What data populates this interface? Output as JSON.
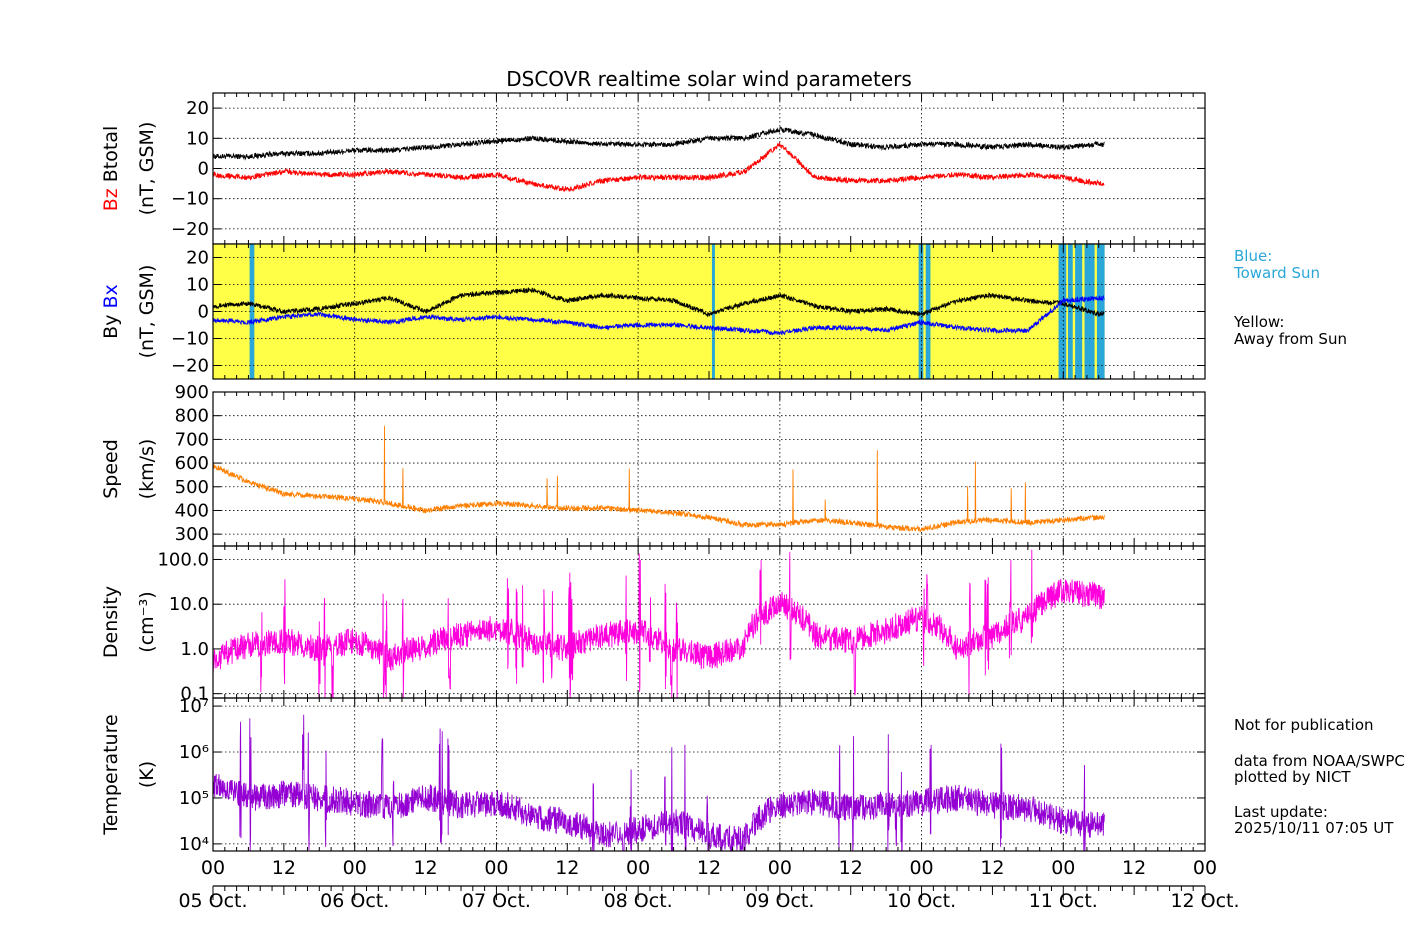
{
  "chart_data": {
    "type": "line",
    "title": "DSCOVR realtime solar wind parameters",
    "x_axis": {
      "range_hours": [
        0,
        168
      ],
      "hour_ticks": [
        "00",
        "12",
        "00",
        "12",
        "00",
        "12",
        "00",
        "12",
        "00",
        "12",
        "00",
        "12",
        "00",
        "12",
        "00"
      ],
      "date_ticks": [
        "05 Oct.",
        "06 Oct.",
        "07 Oct.",
        "08 Oct.",
        "09 Oct.",
        "10 Oct.",
        "11 Oct.",
        "12 Oct."
      ],
      "data_end_hour": 151
    },
    "panels": [
      {
        "id": "btotal_bz",
        "ylabel_parts": [
          "Bz",
          "Btotal"
        ],
        "ylabel_colors": [
          "#ff0000",
          "#000000"
        ],
        "ylabel_unit": "(nT, GSM)",
        "scale": "linear",
        "ylim": [
          -25,
          25
        ],
        "yticks": [
          -20,
          -10,
          0,
          10,
          20
        ],
        "ytick_labels": [
          "−20",
          "−10",
          "0",
          "10",
          "20"
        ],
        "series": [
          {
            "name": "Btotal",
            "color": "#000000",
            "x": [
              0,
              6,
              12,
              18,
              24,
              30,
              36,
              42,
              48,
              54,
              60,
              66,
              72,
              78,
              84,
              90,
              96,
              102,
              108,
              114,
              120,
              126,
              132,
              138,
              144,
              150
            ],
            "values": [
              4,
              4,
              5,
              5,
              6,
              6,
              7,
              8,
              9,
              10,
              9,
              8,
              8,
              8,
              10,
              10,
              13,
              11,
              8,
              7,
              8,
              8,
              7,
              8,
              7,
              8
            ]
          },
          {
            "name": "Bz",
            "color": "#ff0000",
            "x": [
              0,
              6,
              12,
              18,
              24,
              30,
              36,
              42,
              48,
              54,
              60,
              66,
              72,
              78,
              84,
              90,
              96,
              102,
              108,
              114,
              120,
              126,
              132,
              138,
              144,
              150
            ],
            "values": [
              -2,
              -3,
              -1,
              -2,
              -2,
              -1,
              -2,
              -3,
              -2,
              -5,
              -7,
              -4,
              -3,
              -3,
              -3,
              -1,
              8,
              -3,
              -4,
              -4,
              -3,
              -2,
              -3,
              -2,
              -3,
              -5
            ]
          }
        ]
      },
      {
        "id": "by_bx",
        "ylabel_parts": [
          "By",
          "Bx"
        ],
        "ylabel_colors": [
          "#000000",
          "#0000ff"
        ],
        "ylabel_unit": "(nT, GSM)",
        "scale": "linear",
        "ylim": [
          -25,
          25
        ],
        "yticks": [
          -20,
          -10,
          0,
          10,
          20
        ],
        "ytick_labels": [
          "−20",
          "−10",
          "0",
          "10",
          "20"
        ],
        "background": {
          "away_color": "#ffff47",
          "toward_color": "#2aa7d8",
          "toward_intervals_hours": [
            [
              6.2,
              7.0
            ],
            [
              84.5,
              85.0
            ],
            [
              119.5,
              120.3
            ],
            [
              120.7,
              121.5
            ],
            [
              143.2,
              144.5
            ],
            [
              144.8,
              145.6
            ],
            [
              146.0,
              147.2
            ],
            [
              147.6,
              149.3
            ],
            [
              149.7,
              151.0
            ]
          ]
        },
        "series": [
          {
            "name": "By",
            "color": "#000000",
            "x": [
              0,
              6,
              12,
              18,
              24,
              30,
              36,
              42,
              48,
              54,
              60,
              66,
              72,
              78,
              84,
              90,
              96,
              102,
              108,
              114,
              120,
              126,
              132,
              138,
              144,
              150
            ],
            "values": [
              2,
              3,
              0,
              1,
              3,
              5,
              0,
              6,
              7,
              8,
              4,
              6,
              5,
              4,
              -1,
              3,
              6,
              2,
              0,
              1,
              -1,
              4,
              6,
              4,
              3,
              -1
            ]
          },
          {
            "name": "Bx",
            "color": "#0000ff",
            "x": [
              0,
              6,
              12,
              18,
              24,
              30,
              36,
              42,
              48,
              54,
              60,
              66,
              72,
              78,
              84,
              90,
              96,
              102,
              108,
              114,
              120,
              126,
              132,
              138,
              144,
              150
            ],
            "values": [
              -3,
              -4,
              -2,
              -1,
              -3,
              -4,
              -2,
              -3,
              -2,
              -3,
              -4,
              -6,
              -5,
              -5,
              -6,
              -7,
              -8,
              -6,
              -6,
              -7,
              -4,
              -6,
              -7,
              -7,
              4,
              5
            ]
          }
        ],
        "legend_notes": [
          {
            "label": "Blue:",
            "detail": "Toward Sun",
            "color": "#2aa7d8"
          },
          {
            "label": "Yellow:",
            "detail": "Away from Sun",
            "color": "#000000"
          }
        ]
      },
      {
        "id": "speed",
        "ylabel_parts": [
          "Speed"
        ],
        "ylabel_colors": [
          "#000000"
        ],
        "ylabel_unit": "(km/s)",
        "scale": "linear",
        "ylim": [
          250,
          900
        ],
        "yticks": [
          300,
          400,
          500,
          600,
          700,
          800,
          900
        ],
        "ytick_labels": [
          "300",
          "400",
          "500",
          "600",
          "700",
          "800",
          "900"
        ],
        "series": [
          {
            "name": "Speed",
            "color": "#ff8000",
            "x": [
              0,
              6,
              12,
              18,
              24,
              30,
              36,
              42,
              48,
              54,
              60,
              66,
              72,
              78,
              84,
              90,
              96,
              102,
              108,
              114,
              120,
              126,
              132,
              138,
              144,
              150
            ],
            "values": [
              590,
              520,
              470,
              460,
              450,
              430,
              400,
              420,
              430,
              420,
              410,
              410,
              400,
              390,
              370,
              340,
              340,
              360,
              350,
              330,
              320,
              350,
              360,
              350,
              360,
              370
            ]
          }
        ]
      },
      {
        "id": "density",
        "ylabel_parts": [
          "Density"
        ],
        "ylabel_colors": [
          "#000000"
        ],
        "ylabel_unit": "(cm⁻³)",
        "scale": "log",
        "ylim": [
          0.08,
          200
        ],
        "yticks": [
          0.1,
          1.0,
          10.0,
          100.0
        ],
        "ytick_labels": [
          "0.1",
          "1.0",
          "10.0",
          "100.0"
        ],
        "series": [
          {
            "name": "Density",
            "color": "#ff00dd",
            "x": [
              0,
              6,
              12,
              18,
              24,
              30,
              36,
              42,
              48,
              54,
              60,
              66,
              72,
              78,
              84,
              90,
              96,
              102,
              108,
              114,
              120,
              126,
              132,
              138,
              144,
              150
            ],
            "values": [
              0.5,
              1.2,
              1.5,
              1.0,
              1.5,
              0.6,
              1.2,
              2.0,
              3.0,
              1.5,
              1.0,
              2.0,
              2.5,
              1.0,
              0.6,
              1.2,
              10,
              2.0,
              1.5,
              2.5,
              5,
              1.0,
              2.0,
              5,
              20,
              15
            ]
          }
        ]
      },
      {
        "id": "temperature",
        "ylabel_parts": [
          "Temperature"
        ],
        "ylabel_colors": [
          "#000000"
        ],
        "ylabel_unit": "(K)",
        "scale": "log",
        "ylim": [
          7000,
          15000000
        ],
        "yticks": [
          10000,
          100000,
          1000000,
          10000000
        ],
        "ytick_labels": [
          "10⁴",
          "10⁵",
          "10⁶",
          "10⁷"
        ],
        "series": [
          {
            "name": "Temperature",
            "color": "#9400d3",
            "x": [
              0,
              6,
              12,
              18,
              24,
              30,
              36,
              42,
              48,
              54,
              60,
              66,
              72,
              78,
              84,
              90,
              96,
              102,
              108,
              114,
              120,
              126,
              132,
              138,
              144,
              150
            ],
            "values": [
              200000,
              100000,
              120000,
              100000,
              80000,
              60000,
              100000,
              70000,
              80000,
              40000,
              30000,
              15000,
              20000,
              30000,
              15000,
              12000,
              70000,
              80000,
              60000,
              70000,
              80000,
              100000,
              70000,
              60000,
              30000,
              25000
            ]
          }
        ]
      }
    ]
  },
  "side_notes": {
    "not_for_publication": "Not for publication",
    "source_line1": "data from NOAA/SWPC",
    "source_line2": "plotted by NICT",
    "last_update_label": "Last update:",
    "last_update_value": "2025/10/11 07:05 UT"
  }
}
